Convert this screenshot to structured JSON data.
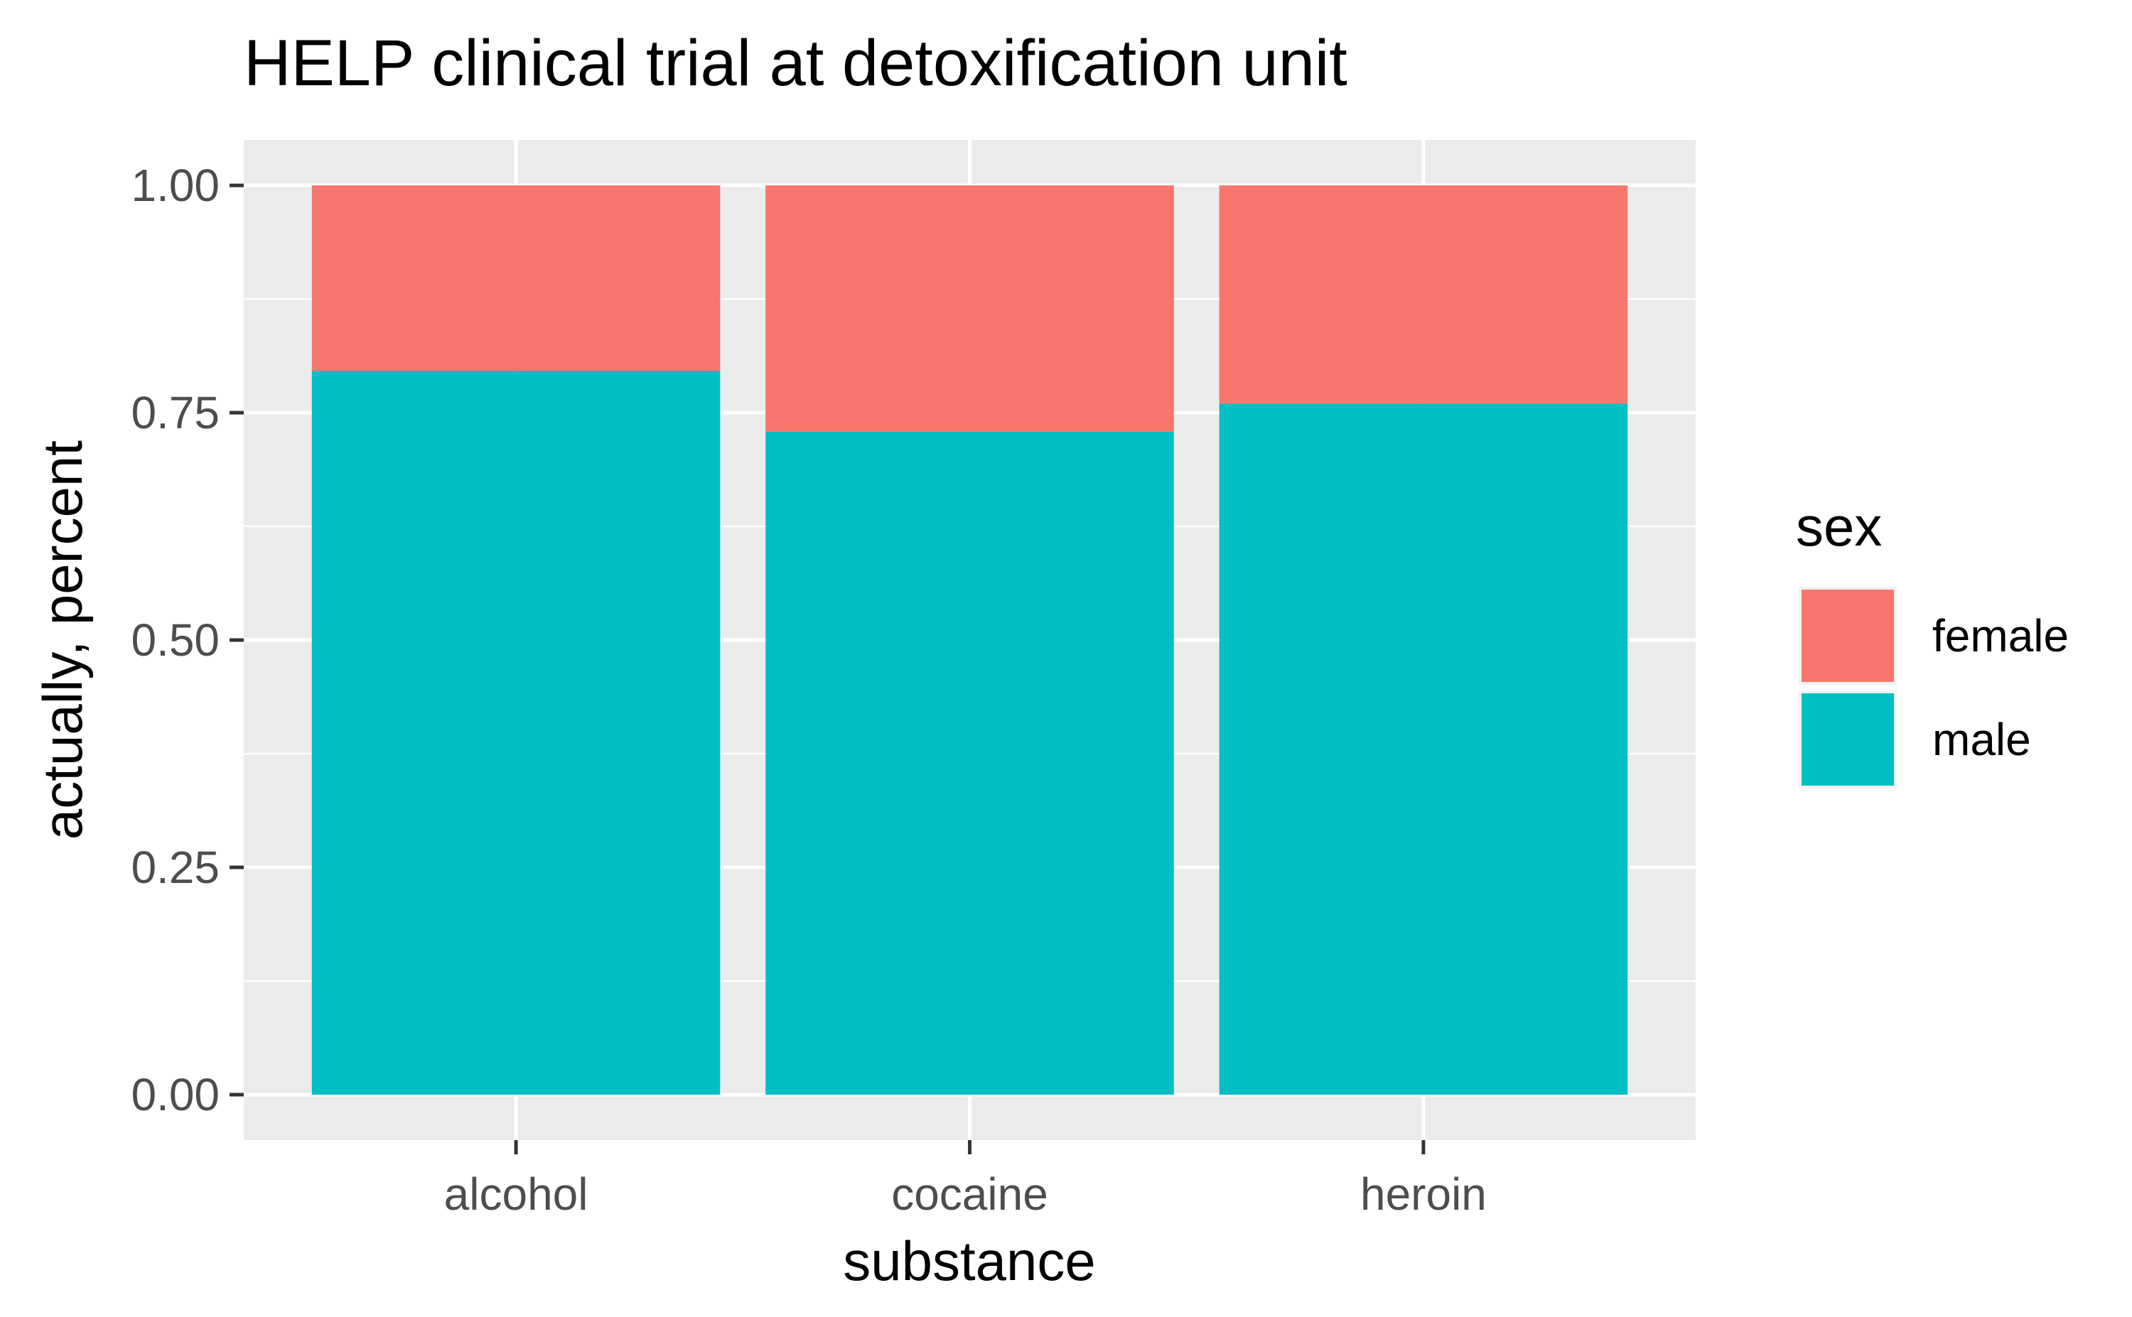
{
  "chart_data": {
    "type": "bar",
    "stacked": true,
    "title": "HELP clinical trial at detoxification unit",
    "xlabel": "substance",
    "ylabel": "actually, percent",
    "categories": [
      "alcohol",
      "cocaine",
      "heroin"
    ],
    "series": [
      {
        "name": "male",
        "values": [
          0.796,
          0.729,
          0.76
        ],
        "color": "#00BFC4"
      },
      {
        "name": "female",
        "values": [
          0.204,
          0.271,
          0.24
        ],
        "color": "#F8766D"
      }
    ],
    "ylim": [
      -0.05,
      1.05
    ],
    "yticks": [
      0.0,
      0.25,
      0.5,
      0.75,
      1.0
    ],
    "ytick_labels": [
      "0.00",
      "0.25",
      "0.50",
      "0.75",
      "1.00"
    ],
    "grid": true,
    "legend": {
      "title": "sex",
      "placement": "right",
      "entries": [
        {
          "label": "female",
          "color": "#F8766D"
        },
        {
          "label": "male",
          "color": "#00BFC4"
        }
      ]
    },
    "colors": {
      "panel_background": "#EBEBEB",
      "grid_line": "#FFFFFF",
      "tick_mark": "#333333"
    }
  }
}
